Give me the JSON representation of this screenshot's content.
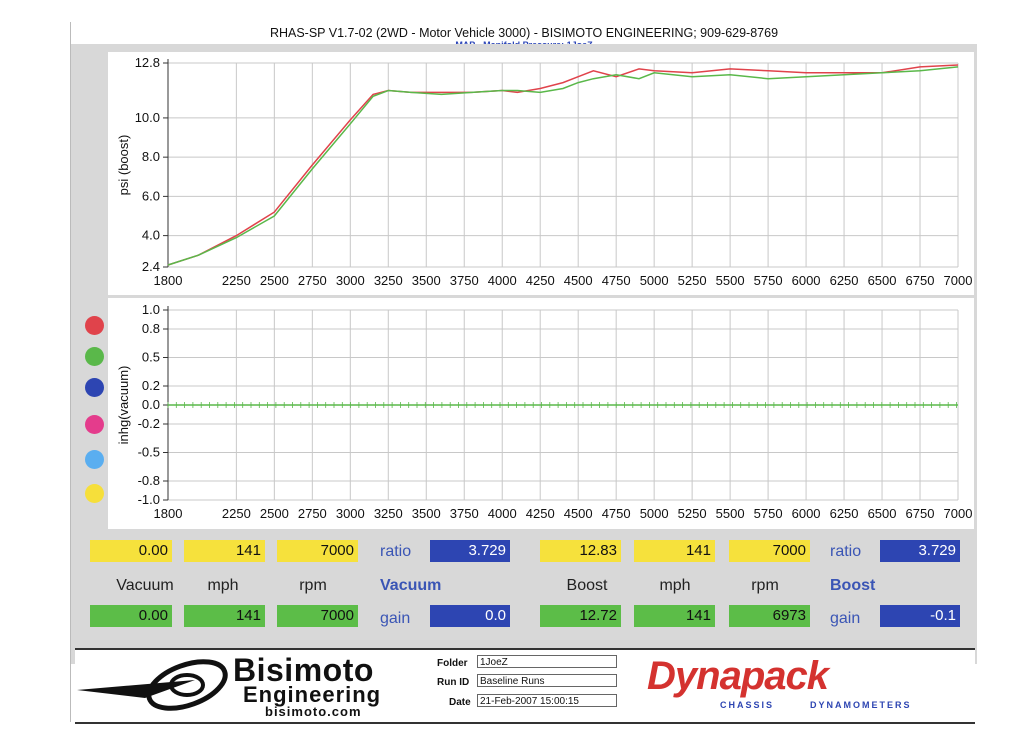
{
  "title": "RHAS-SP V1.7-02   (2WD - Motor Vehicle 3000) - BISIMOTO ENGINEERING; 909-629-8769",
  "subtitle": "MAP - Manifold Pressure: 1JoeZ",
  "colors": {
    "red": "#e0434b",
    "green": "#5ab84a",
    "blue": "#2d45b2",
    "magenta": "#e43c8c",
    "cyan": "#5aaef0",
    "yellow": "#f6df3a"
  },
  "chart_data": [
    {
      "type": "line",
      "ylabel": "psi (boost)",
      "xlim": [
        1800,
        7000
      ],
      "ylim": [
        2.4,
        12.8
      ],
      "x_ticks": [
        1800,
        2250,
        2500,
        2750,
        3000,
        3250,
        3500,
        3750,
        4000,
        4250,
        4500,
        4750,
        5000,
        5250,
        5500,
        5750,
        6000,
        6250,
        6500,
        6750,
        7000
      ],
      "y_ticks": [
        "2.4",
        "4.0",
        "6.0",
        "8.0",
        "10.0",
        "12.8"
      ],
      "series": [
        {
          "color": "#e0434b",
          "x": [
            1800,
            2000,
            2250,
            2500,
            2750,
            3000,
            3150,
            3250,
            3400,
            3600,
            3800,
            4000,
            4100,
            4250,
            4400,
            4500,
            4600,
            4750,
            4900,
            5000,
            5250,
            5500,
            5750,
            6000,
            6250,
            6500,
            6750,
            7000
          ],
          "y": [
            2.5,
            3.0,
            4.0,
            5.2,
            7.6,
            9.9,
            11.2,
            11.4,
            11.3,
            11.3,
            11.3,
            11.4,
            11.3,
            11.5,
            11.8,
            12.1,
            12.4,
            12.1,
            12.5,
            12.4,
            12.3,
            12.5,
            12.4,
            12.3,
            12.3,
            12.3,
            12.6,
            12.7
          ]
        },
        {
          "color": "#5ab84a",
          "x": [
            1800,
            2000,
            2250,
            2500,
            2750,
            3000,
            3150,
            3250,
            3400,
            3600,
            3800,
            4000,
            4100,
            4250,
            4400,
            4500,
            4600,
            4750,
            4900,
            5000,
            5250,
            5500,
            5750,
            6000,
            6250,
            6500,
            6750,
            7000
          ],
          "y": [
            2.5,
            3.0,
            3.9,
            5.0,
            7.4,
            9.7,
            11.1,
            11.4,
            11.3,
            11.2,
            11.3,
            11.4,
            11.4,
            11.3,
            11.5,
            11.8,
            12.0,
            12.2,
            12.0,
            12.3,
            12.1,
            12.2,
            12.0,
            12.1,
            12.2,
            12.3,
            12.4,
            12.6
          ]
        }
      ]
    },
    {
      "type": "line",
      "ylabel": "inhg(vacuum)",
      "xlim": [
        1800,
        7000
      ],
      "ylim": [
        -1.0,
        1.0
      ],
      "x_ticks": [
        1800,
        2250,
        2500,
        2750,
        3000,
        3250,
        3500,
        3750,
        4000,
        4250,
        4500,
        4750,
        5000,
        5250,
        5500,
        5750,
        6000,
        6250,
        6500,
        6750,
        7000
      ],
      "y_ticks": [
        "1.0",
        "0.8",
        "0.5",
        "0.2",
        "0.0",
        "-0.2",
        "-0.5",
        "-0.8",
        "-1.0"
      ],
      "series": [
        {
          "color": "#5ab84a",
          "x": [
            1800,
            7000
          ],
          "y": [
            0.0,
            0.0
          ]
        }
      ]
    }
  ],
  "readouts": {
    "left": {
      "vac1": "0.00",
      "mph1": "141",
      "rpm1": "7000",
      "ratio_label": "ratio",
      "ratio": "3.729",
      "label_vac": "Vacuum",
      "label_mph": "mph",
      "label_rpm": "rpm",
      "label_type": "Vacuum",
      "vac2": "0.00",
      "mph2": "141",
      "rpm2": "7000",
      "gain_label": "gain",
      "gain": "0.0"
    },
    "right": {
      "boost1": "12.83",
      "mph1": "141",
      "rpm1": "7000",
      "ratio_label": "ratio",
      "ratio": "3.729",
      "label_boost": "Boost",
      "label_mph": "mph",
      "label_rpm": "rpm",
      "label_type": "Boost",
      "boost2": "12.72",
      "mph2": "141",
      "rpm2": "6973",
      "gain_label": "gain",
      "gain": "-0.1"
    }
  },
  "footer": {
    "brand1": "Bisimoto",
    "brand2": "Engineering",
    "brand3": "bisimoto.com",
    "folder_label": "Folder",
    "folder": "1JoeZ",
    "run_label": "Run ID",
    "run": "Baseline Runs",
    "date_label": "Date",
    "date": "21-Feb-2007  15:00:15",
    "dyna": "Dynapack",
    "dyna_sub": "CHASSIS        DYNAMOMETERS"
  }
}
